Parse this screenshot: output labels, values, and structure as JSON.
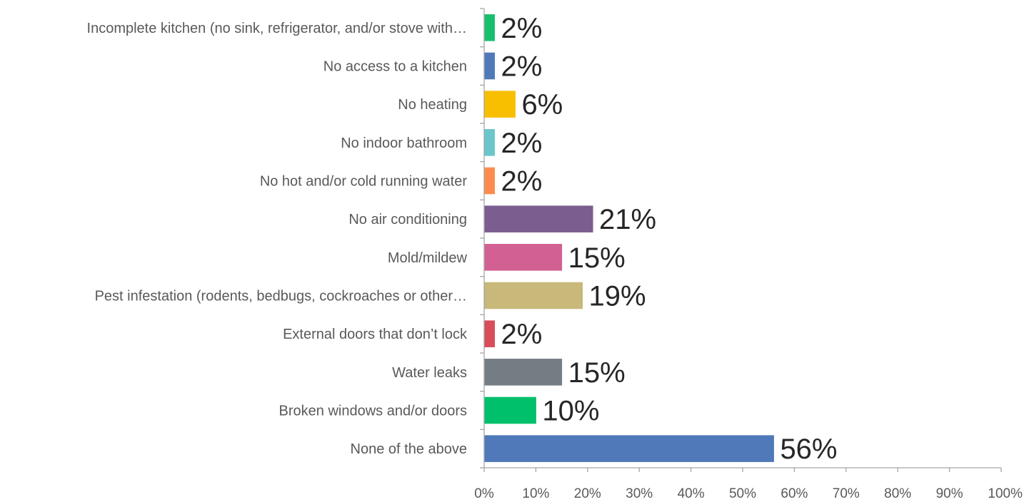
{
  "chart_data": {
    "type": "bar",
    "orientation": "horizontal",
    "title": "",
    "xlabel": "",
    "ylabel": "",
    "xlim": [
      0,
      100
    ],
    "x_ticks": [
      "0%",
      "10%",
      "20%",
      "30%",
      "40%",
      "50%",
      "60%",
      "70%",
      "80%",
      "90%",
      "100%"
    ],
    "grid": false,
    "legend": "none",
    "categories": [
      "Incomplete kitchen (no sink, refrigerator, and/or stove with…",
      "No access to a kitchen",
      "No heating",
      "No indoor bathroom",
      "No hot and/or cold running water",
      "No air conditioning",
      "Mold/mildew",
      "Pest infestation (rodents, bedbugs, cockroaches or other…",
      "External doors that don’t lock",
      "Water leaks",
      "Broken windows and/or doors",
      "None of the above"
    ],
    "values": [
      2,
      2,
      6,
      2,
      2,
      21,
      15,
      19,
      2,
      15,
      10,
      56
    ],
    "value_labels": [
      "2%",
      "2%",
      "6%",
      "2%",
      "2%",
      "21%",
      "15%",
      "19%",
      "2%",
      "15%",
      "10%",
      "56%"
    ],
    "colors": [
      "#18bf6d",
      "#4f79b8",
      "#f8be00",
      "#6ac6ca",
      "#fd8c4e",
      "#7b5d8f",
      "#d36092",
      "#c8b87a",
      "#d94c5a",
      "#757d84",
      "#00c06b",
      "#4f79b8"
    ]
  }
}
